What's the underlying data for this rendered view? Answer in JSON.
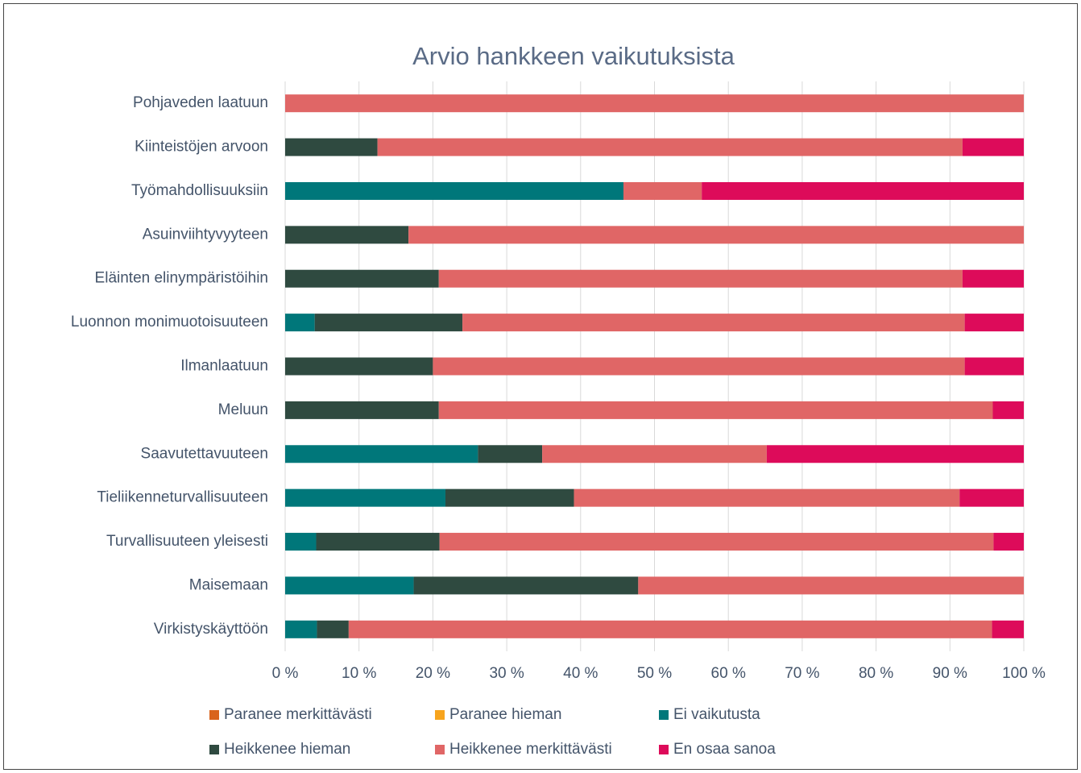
{
  "chart_data": {
    "type": "stacked-bar-horizontal",
    "title": "Arvio hankkeen vaikutuksista",
    "categories": [
      "Pohjaveden laatuun",
      "Kiinteistöjen arvoon",
      "Työmahdollisuuksiin",
      "Asuinviihtyvyyteen",
      "Eläinten elinympäristöihin",
      "Luonnon monimuotoisuuteen",
      "Ilmanlaatuun",
      "Meluun",
      "Saavutettavuuteen",
      "Tieliikenneturvallisuuteen",
      "Turvallisuuteen yleisesti",
      "Maisemaan",
      "Virkistyskäyttöön"
    ],
    "series": [
      {
        "name": "Paranee merkittävästi",
        "color": "#d9631c",
        "values": [
          0,
          0,
          0,
          0,
          0,
          0,
          0,
          0,
          0,
          0,
          0,
          0,
          0
        ]
      },
      {
        "name": "Paranee hieman",
        "color": "#f7a41d",
        "values": [
          0,
          0,
          0,
          0,
          0,
          0,
          0,
          0,
          0,
          0,
          0,
          0,
          0
        ]
      },
      {
        "name": "Ei vaikutusta",
        "color": "#00777a",
        "values": [
          0,
          0,
          45.8,
          0,
          0,
          4.0,
          0,
          0,
          26.1,
          21.7,
          4.2,
          17.4,
          4.3
        ]
      },
      {
        "name": "Heikkenee hieman",
        "color": "#2f4a40",
        "values": [
          0,
          12.5,
          0,
          16.7,
          20.8,
          20.0,
          20.0,
          20.8,
          8.7,
          17.4,
          16.7,
          30.4,
          4.3
        ]
      },
      {
        "name": "Heikkenee merkittävästi",
        "color": "#e06666",
        "values": [
          100,
          79.2,
          10.6,
          83.3,
          70.9,
          68.0,
          72.0,
          75.0,
          30.4,
          52.2,
          75.0,
          52.2,
          87.1
        ]
      },
      {
        "name": "En osaa sanoa",
        "color": "#dd0b5a",
        "values": [
          0,
          8.3,
          43.6,
          0,
          8.3,
          8.0,
          8.0,
          4.2,
          34.8,
          8.7,
          4.1,
          0,
          4.3
        ]
      }
    ],
    "xlim": [
      0,
      100
    ],
    "xticks": [
      {
        "value": 0,
        "label": "0 %"
      },
      {
        "value": 10,
        "label": "10 %"
      },
      {
        "value": 20,
        "label": "20 %"
      },
      {
        "value": 30,
        "label": "30 %"
      },
      {
        "value": 40,
        "label": "40 %"
      },
      {
        "value": 50,
        "label": "50 %"
      },
      {
        "value": 60,
        "label": "60 %"
      },
      {
        "value": 70,
        "label": "70 %"
      },
      {
        "value": 80,
        "label": "80 %"
      },
      {
        "value": 90,
        "label": "90 %"
      },
      {
        "value": 100,
        "label": "100 %"
      }
    ],
    "grid": true,
    "legend": "bottom"
  }
}
